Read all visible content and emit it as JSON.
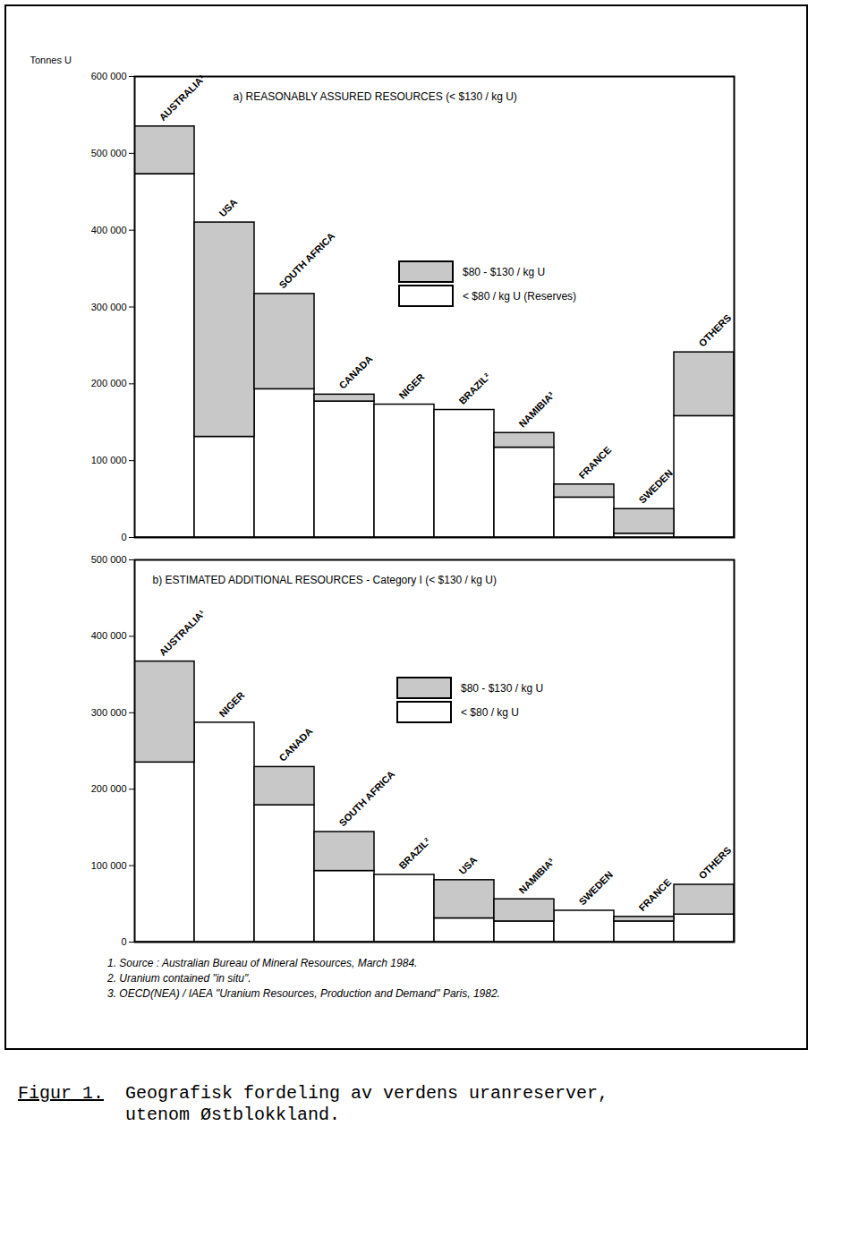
{
  "chart_data": [
    {
      "type": "bar",
      "stacked": true,
      "title": "a) REASONABLY ASSURED RESOURCES (< $130 / kg U)",
      "ylabel": "Tonnes U",
      "categories": [
        "AUSTRALIA¹",
        "USA",
        "SOUTH AFRICA",
        "CANADA",
        "NIGER",
        "BRAZIL²",
        "NAMIBIA³",
        "FRANCE",
        "SWEDEN",
        "OTHERS"
      ],
      "series": [
        {
          "name": "< $80 / kg U (Reserves)",
          "color": "#ffffff",
          "values": [
            473000,
            131000,
            193000,
            177000,
            173000,
            166000,
            117000,
            52000,
            5000,
            158000
          ]
        },
        {
          "name": "$80 - $130 / kg U",
          "color": "#c8c8c8",
          "values": [
            62000,
            279000,
            124000,
            9000,
            0,
            0,
            19000,
            17000,
            32000,
            83000
          ]
        }
      ],
      "ylim": [
        0,
        600000
      ],
      "yticks": [
        0,
        {
          "value": 100000,
          "label": "100 000"
        },
        {
          "value": 200000,
          "label": "200 000"
        },
        {
          "value": 300000,
          "label": "300 000"
        },
        {
          "value": 400000,
          "label": "400 000"
        },
        {
          "value": 500000,
          "label": "500 000"
        },
        {
          "value": 600000,
          "label": "600 000"
        }
      ],
      "legend": "right",
      "tick_labels": "y"
    },
    {
      "type": "bar",
      "stacked": true,
      "title": "b) ESTIMATED ADDITIONAL RESOURCES - Category I (< $130 / kg U)",
      "categories": [
        "AUSTRALIA¹",
        "NIGER",
        "CANADA",
        "SOUTH AFRICA",
        "BRAZIL²",
        "USA",
        "NAMIBIA³",
        "SWEDEN",
        "FRANCE",
        "OTHERS"
      ],
      "series": [
        {
          "name": "< $80 / kg U",
          "color": "#ffffff",
          "values": [
            235000,
            287000,
            179000,
            93000,
            88000,
            31000,
            27000,
            41000,
            27000,
            36000
          ]
        },
        {
          "name": "$80 - $130 / kg U",
          "color": "#c8c8c8",
          "values": [
            132000,
            0,
            50000,
            51000,
            0,
            50000,
            29000,
            0,
            6000,
            39000
          ]
        }
      ],
      "ylim": [
        0,
        500000
      ],
      "yticks": [
        0,
        {
          "value": 100000,
          "label": "100 000"
        },
        {
          "value": 200000,
          "label": "200 000"
        },
        {
          "value": 300000,
          "label": "300 000"
        },
        {
          "value": 400000,
          "label": "400 000"
        },
        {
          "value": 500000,
          "label": "500 000"
        }
      ],
      "legend": "right",
      "tick_labels": "y"
    }
  ],
  "footnotes": [
    "1. Source : Australian Bureau of Mineral Resources, March 1984.",
    "2. Uranium contained \"in situ\".",
    "3. OECD(NEA) / IAEA \"Uranium Resources, Production and Demand\" Paris, 1982."
  ],
  "caption": {
    "label": "Figur 1.",
    "text": "Geografisk fordeling av verdens uranreserver,\nutenom Østblokkland."
  }
}
